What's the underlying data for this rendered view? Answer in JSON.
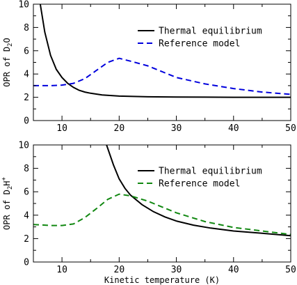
{
  "chart_data": [
    {
      "type": "line",
      "xlim": [
        5,
        50
      ],
      "ylim": [
        0,
        10
      ],
      "xticks": [
        10,
        20,
        30,
        40,
        50
      ],
      "yticks": [
        0,
        2,
        4,
        6,
        8,
        10
      ],
      "xlabel": "",
      "ylabel": {
        "base": "OPR of D",
        "sub": "2",
        "tail": "O"
      },
      "legend_position": "top-right",
      "series": [
        {
          "name": "Thermal equilibrium",
          "color": "#000000",
          "dash": "solid",
          "x": [
            6.2,
            7,
            8,
            9,
            10,
            11,
            12,
            13,
            14,
            15,
            17,
            20,
            25,
            30,
            35,
            40,
            45,
            50
          ],
          "y": [
            10,
            7.6,
            5.6,
            4.4,
            3.7,
            3.2,
            2.85,
            2.6,
            2.45,
            2.35,
            2.2,
            2.1,
            2.04,
            2.02,
            2.01,
            2.0,
            2.0,
            2.0
          ]
        },
        {
          "name": "Reference model",
          "color": "#0000dd",
          "dash": "dashed",
          "x": [
            5,
            8,
            10,
            12,
            14,
            16,
            18,
            20,
            22,
            25,
            28,
            30,
            35,
            40,
            45,
            50
          ],
          "y": [
            3.0,
            3.0,
            3.05,
            3.2,
            3.6,
            4.3,
            5.0,
            5.35,
            5.1,
            4.7,
            4.1,
            3.7,
            3.15,
            2.75,
            2.45,
            2.25
          ]
        }
      ]
    },
    {
      "type": "line",
      "xlim": [
        5,
        50
      ],
      "ylim": [
        0,
        10
      ],
      "xticks": [
        10,
        20,
        30,
        40,
        50
      ],
      "yticks": [
        0,
        2,
        4,
        6,
        8,
        10
      ],
      "xlabel": "Kinetic temperature (K)",
      "ylabel": {
        "base": "OPR of D",
        "sub": "2",
        "tail": "H",
        "sup": "+"
      },
      "legend_position": "top-right",
      "series": [
        {
          "name": "Thermal equilibrium",
          "color": "#000000",
          "dash": "solid",
          "x": [
            17.8,
            19,
            20,
            21,
            22,
            24,
            26,
            28,
            30,
            33,
            36,
            40,
            45,
            50
          ],
          "y": [
            10,
            8.3,
            7.1,
            6.3,
            5.7,
            4.9,
            4.3,
            3.85,
            3.5,
            3.15,
            2.9,
            2.65,
            2.45,
            2.25
          ]
        },
        {
          "name": "Reference model",
          "color": "#118811",
          "dash": "dashed",
          "x": [
            5,
            8,
            10,
            12,
            14,
            16,
            18,
            20,
            22,
            25,
            28,
            30,
            35,
            40,
            45,
            50
          ],
          "y": [
            3.2,
            3.12,
            3.12,
            3.25,
            3.8,
            4.55,
            5.35,
            5.8,
            5.65,
            5.2,
            4.6,
            4.2,
            3.45,
            2.95,
            2.65,
            2.35
          ]
        }
      ]
    }
  ]
}
